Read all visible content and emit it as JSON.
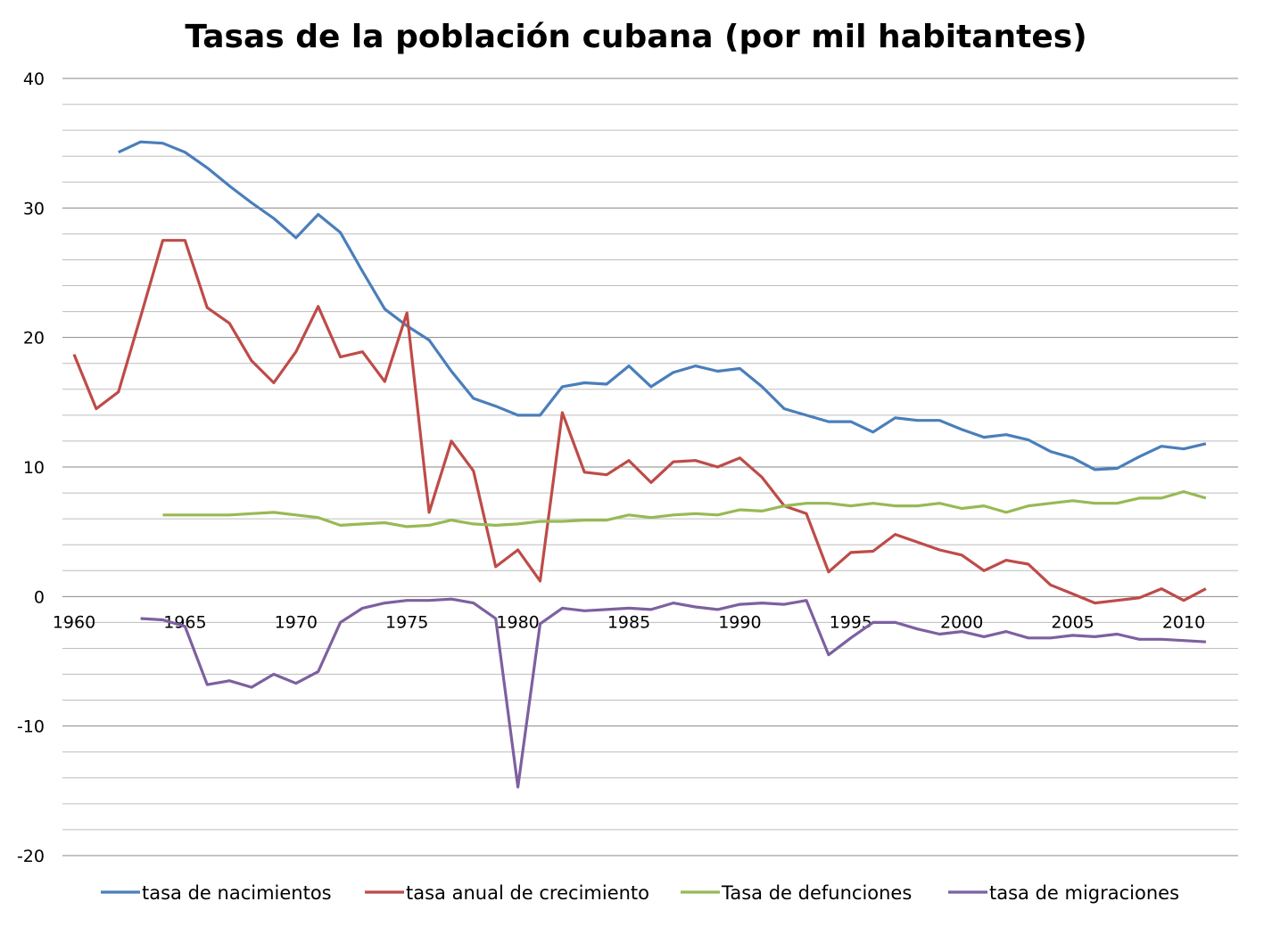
{
  "chart_data": {
    "type": "line",
    "title": "Tasas de la población cubana (por mil habitantes)",
    "xlabel": "",
    "ylabel": "",
    "ylim": [
      -20,
      40
    ],
    "xlim": [
      1960,
      2011
    ],
    "y_major_ticks": [
      -20,
      -10,
      0,
      10,
      20,
      30,
      40
    ],
    "y_minor_step": 2,
    "x_ticks": [
      1960,
      1965,
      1970,
      1975,
      1980,
      1985,
      1990,
      1995,
      2000,
      2005,
      2010
    ],
    "grid": true,
    "legend_position": "bottom",
    "series": [
      {
        "name": "tasa de nacimientos",
        "color": "#4a7ebb",
        "start_year": 1962,
        "values": [
          34.3,
          35.1,
          35.0,
          34.3,
          33.1,
          31.7,
          30.4,
          29.2,
          27.7,
          29.5,
          28.1,
          25.1,
          22.2,
          20.9,
          19.8,
          17.4,
          15.3,
          14.7,
          14.0,
          14.0,
          16.2,
          16.5,
          16.4,
          17.8,
          16.2,
          17.3,
          17.8,
          17.4,
          17.6,
          16.2,
          14.5,
          14.0,
          13.5,
          13.5,
          12.7,
          13.8,
          13.6,
          13.6,
          12.9,
          12.3,
          12.5,
          12.1,
          11.2,
          10.7,
          9.8,
          9.9,
          10.8,
          11.6,
          11.4,
          11.8
        ]
      },
      {
        "name": "tasa anual de crecimiento",
        "color": "#be4b48",
        "start_year": 1960,
        "values": [
          18.7,
          14.5,
          15.8,
          21.6,
          27.5,
          27.5,
          22.3,
          21.1,
          18.2,
          16.5,
          18.9,
          22.4,
          18.5,
          18.9,
          16.6,
          21.9,
          6.5,
          12.0,
          9.7,
          2.3,
          3.6,
          1.2,
          14.2,
          9.6,
          9.4,
          10.5,
          8.8,
          10.4,
          10.5,
          10.0,
          10.7,
          9.2,
          7.0,
          6.4,
          1.9,
          3.4,
          3.5,
          4.8,
          4.2,
          3.6,
          3.2,
          2.0,
          2.8,
          2.5,
          0.9,
          0.2,
          -0.5,
          -0.3,
          -0.1,
          0.6,
          -0.3,
          0.6
        ]
      },
      {
        "name": "Tasa de defunciones",
        "color": "#98b954",
        "start_year": 1964,
        "values": [
          6.3,
          6.3,
          6.3,
          6.3,
          6.4,
          6.5,
          6.3,
          6.1,
          5.5,
          5.6,
          5.7,
          5.4,
          5.5,
          5.9,
          5.6,
          5.5,
          5.6,
          5.8,
          5.8,
          5.9,
          5.9,
          6.3,
          6.1,
          6.3,
          6.4,
          6.3,
          6.7,
          6.6,
          7.0,
          7.2,
          7.2,
          7.0,
          7.2,
          7.0,
          7.0,
          7.2,
          6.8,
          7.0,
          6.5,
          7.0,
          7.2,
          7.4,
          7.2,
          7.2,
          7.6,
          7.6,
          8.1,
          7.6
        ]
      },
      {
        "name": "tasa de migraciones",
        "color": "#7d60a0",
        "start_year": 1963,
        "values": [
          -1.7,
          -1.8,
          -2.3,
          -6.8,
          -6.5,
          -7.0,
          -6.0,
          -6.7,
          -5.8,
          -2.0,
          -0.9,
          -0.5,
          -0.3,
          -0.3,
          -0.2,
          -0.5,
          -1.7,
          -14.7,
          -2.1,
          -0.9,
          -1.1,
          -1.0,
          -0.9,
          -1.0,
          -0.5,
          -0.8,
          -1.0,
          -0.6,
          -0.5,
          -0.6,
          -0.3,
          -4.5,
          -3.2,
          -2.0,
          -2.0,
          -2.5,
          -2.9,
          -2.7,
          -3.1,
          -2.7,
          -3.2,
          -3.2,
          -3.0,
          -3.1,
          -2.9,
          -3.3,
          -3.3,
          -3.4,
          -3.5
        ]
      }
    ]
  }
}
